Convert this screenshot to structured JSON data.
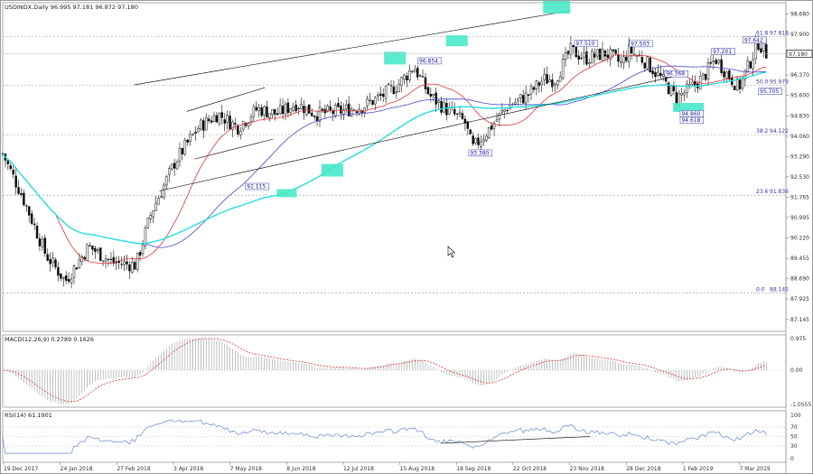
{
  "chart_data": {
    "type": "candlestick",
    "main": {
      "title": "USDINDX,Daily  96.995 97.181 96.872 97.180",
      "last_price_label": "97.180",
      "last_price": 97.18,
      "ylim": [
        86.7,
        99.1
      ],
      "y_ticks": [
        "98.680",
        "97.900",
        "97.180",
        "96.370",
        "95.600",
        "94.830",
        "94.060",
        "93.290",
        "92.530",
        "91.765",
        "90.995",
        "90.220",
        "89.455",
        "88.690",
        "87.925",
        "87.145"
      ],
      "fib_levels": [
        {
          "label": "61.8",
          "value_label": "97.818",
          "value": 97.818
        },
        {
          "label": "50.0",
          "value_label": "95.979",
          "value": 95.979
        },
        {
          "label": "38.2",
          "value_label": "94.122",
          "value": 94.122
        },
        {
          "label": "23.6",
          "value_label": "91.836",
          "value": 91.836
        },
        {
          "label": "0.0",
          "value_label": "88.145",
          "value": 88.145
        }
      ],
      "annotations": [
        {
          "text": "92.115",
          "t": 0.31,
          "v": 92.115
        },
        {
          "text": "96.854",
          "t": 0.53,
          "v": 96.854
        },
        {
          "text": "93.380",
          "t": 0.595,
          "v": 93.38
        },
        {
          "text": "97.510",
          "t": 0.73,
          "v": 97.51
        },
        {
          "text": "97.503",
          "t": 0.8,
          "v": 97.503
        },
        {
          "text": "96.368",
          "t": 0.845,
          "v": 96.368
        },
        {
          "text": "94.860",
          "t": 0.865,
          "v": 94.86
        },
        {
          "text": "94.618",
          "t": 0.865,
          "v": 94.618
        },
        {
          "text": "97.201",
          "t": 0.905,
          "v": 97.201
        },
        {
          "text": "97.642",
          "t": 0.945,
          "v": 97.642
        },
        {
          "text": "95.705",
          "t": 0.965,
          "v": 95.705
        }
      ]
    },
    "x_labels": [
      "19 Dec 2017",
      "24 Jan 2018",
      "27 Feb 2018",
      "3 Apr 2018",
      "7 May 2018",
      "8 Jun 2018",
      "12 Jul 2018",
      "15 Aug 2018",
      "18 Sep 2018",
      "22 Oct 2018",
      "23 Nov 2018",
      "28 Dec 2018",
      "1 Feb 2019",
      "7 Mar 2019"
    ],
    "macd": {
      "title": "MACD(12,26,9) 0.2789 0.1626",
      "y_ticks": [
        "0.975",
        "0.00",
        "-1.0555"
      ]
    },
    "rsi": {
      "title": "RSI(14) 61.1901",
      "y_ticks": [
        "100",
        "70",
        "50",
        "30",
        "0"
      ]
    },
    "colors": {
      "ma_fast": "#e23b3b",
      "ma_mid": "#4c4cd0",
      "ma_slow": "#27e0e0",
      "candle": "#111111",
      "highlight": "#3ee8c6",
      "fib": "#999999",
      "trend": "#222222",
      "rsi": "#6a8ad8",
      "macd_signal": "#e23b3b"
    }
  }
}
